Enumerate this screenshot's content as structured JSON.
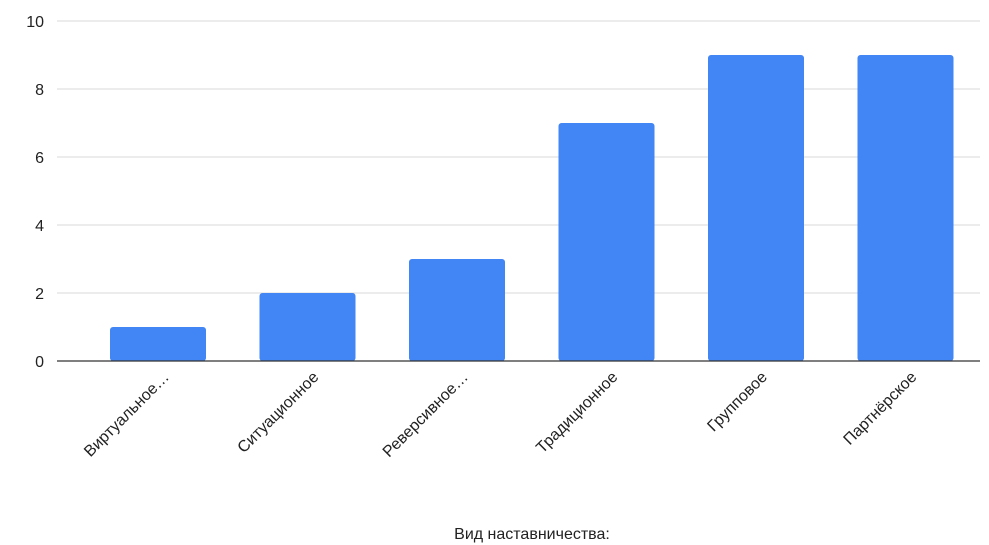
{
  "chart_data": {
    "type": "bar",
    "categories": [
      "Виртуальное…",
      "Ситуационное",
      "Реверсивное…",
      "Традиционное",
      "Групповое",
      "Партнёрское"
    ],
    "values": [
      1,
      2,
      3,
      7,
      9,
      9
    ],
    "title": "",
    "xlabel": "Вид наставничества:",
    "ylabel": "",
    "ylim": [
      0,
      10
    ],
    "yticks": [
      0,
      2,
      4,
      6,
      8,
      10
    ],
    "grid": true,
    "legend": "none",
    "bar_color": "#4285f4"
  }
}
